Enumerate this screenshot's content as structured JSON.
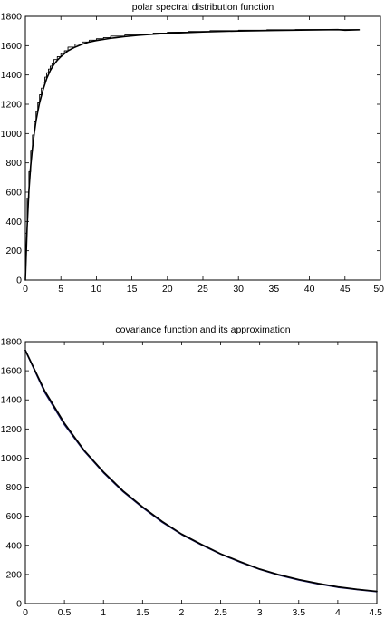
{
  "chart_data": [
    {
      "type": "line",
      "title": "polar spectral distribution function",
      "xlabel": "",
      "ylabel": "",
      "xlim": [
        0,
        50
      ],
      "ylim": [
        0,
        1800
      ],
      "xticks": [
        0,
        5,
        10,
        15,
        20,
        25,
        30,
        35,
        40,
        45,
        50
      ],
      "yticks": [
        0,
        200,
        400,
        600,
        800,
        1000,
        1200,
        1400,
        1600,
        1800
      ],
      "xtick_labels": [
        "0",
        "5",
        "10",
        "15",
        "20",
        "25",
        "30",
        "35",
        "40",
        "45",
        "50"
      ],
      "ytick_labels": [
        "0",
        "200",
        "400",
        "600",
        "800",
        "1000",
        "1200",
        "1400",
        "1600",
        "1800"
      ],
      "grid": false,
      "series": [
        {
          "style": "step",
          "color": "#000000",
          "x": [
            0,
            0.25,
            0.5,
            0.75,
            1,
            1.25,
            1.5,
            1.75,
            2,
            2.25,
            2.5,
            2.75,
            3,
            3.25,
            3.5,
            3.75,
            4,
            4.5,
            5,
            5.5,
            6,
            7,
            8,
            9,
            10,
            11,
            12,
            14,
            16,
            18,
            20,
            23,
            26,
            30,
            34,
            38,
            43,
            47
          ],
          "y": [
            0,
            320,
            560,
            740,
            880,
            990,
            1080,
            1150,
            1210,
            1265,
            1310,
            1350,
            1385,
            1415,
            1440,
            1460,
            1480,
            1505,
            1525,
            1545,
            1565,
            1590,
            1610,
            1625,
            1637,
            1647,
            1655,
            1665,
            1673,
            1680,
            1686,
            1692,
            1697,
            1702,
            1705,
            1708,
            1710,
            1710
          ]
        },
        {
          "style": "line",
          "color": "#000000",
          "x": [
            0,
            0.25,
            0.5,
            0.75,
            1,
            1.25,
            1.5,
            1.75,
            2,
            2.5,
            3,
            3.5,
            4,
            4.5,
            5,
            6,
            7,
            8,
            9,
            10,
            12,
            14,
            16,
            18,
            20,
            25,
            30,
            35,
            40,
            44,
            45,
            47
          ],
          "y": [
            0,
            360,
            610,
            780,
            900,
            1000,
            1085,
            1150,
            1210,
            1300,
            1375,
            1430,
            1470,
            1500,
            1525,
            1565,
            1590,
            1610,
            1625,
            1635,
            1650,
            1662,
            1671,
            1678,
            1684,
            1694,
            1700,
            1704,
            1707,
            1709,
            1705,
            1708
          ]
        }
      ]
    },
    {
      "type": "line",
      "title": "covariance function and its approximation",
      "xlabel": "",
      "ylabel": "",
      "xlim": [
        0,
        4.5
      ],
      "ylim": [
        0,
        1800
      ],
      "xticks": [
        0,
        0.5,
        1,
        1.5,
        2,
        2.5,
        3,
        3.5,
        4,
        4.5
      ],
      "yticks": [
        0,
        200,
        400,
        600,
        800,
        1000,
        1200,
        1400,
        1600,
        1800
      ],
      "xtick_labels": [
        "0",
        "0.5",
        "1",
        "1.5",
        "2",
        "2.5",
        "3",
        "3.5",
        "4",
        "4.5"
      ],
      "ytick_labels": [
        "0",
        "200",
        "400",
        "600",
        "800",
        "1000",
        "1200",
        "1400",
        "1600",
        "1800"
      ],
      "grid": false,
      "series": [
        {
          "style": "line",
          "color": "#1a1a66",
          "x": [
            0,
            0.25,
            0.5,
            0.75,
            1,
            1.25,
            1.5,
            1.75,
            2,
            2.25,
            2.5,
            2.75,
            3,
            3.25,
            3.5,
            3.75,
            4,
            4.25,
            4.5
          ],
          "y": [
            1740,
            1450,
            1230,
            1050,
            900,
            770,
            660,
            560,
            475,
            405,
            340,
            285,
            235,
            195,
            162,
            135,
            112,
            96,
            82
          ]
        },
        {
          "style": "line",
          "color": "#000000",
          "x": [
            0,
            0.25,
            0.5,
            0.75,
            1,
            1.25,
            1.5,
            1.75,
            2,
            2.25,
            2.5,
            2.75,
            3,
            3.25,
            3.5,
            3.75,
            4,
            4.25,
            4.5
          ],
          "y": [
            1740,
            1460,
            1240,
            1055,
            905,
            775,
            665,
            565,
            478,
            408,
            342,
            288,
            237,
            198,
            165,
            138,
            115,
            98,
            84
          ]
        }
      ]
    }
  ]
}
